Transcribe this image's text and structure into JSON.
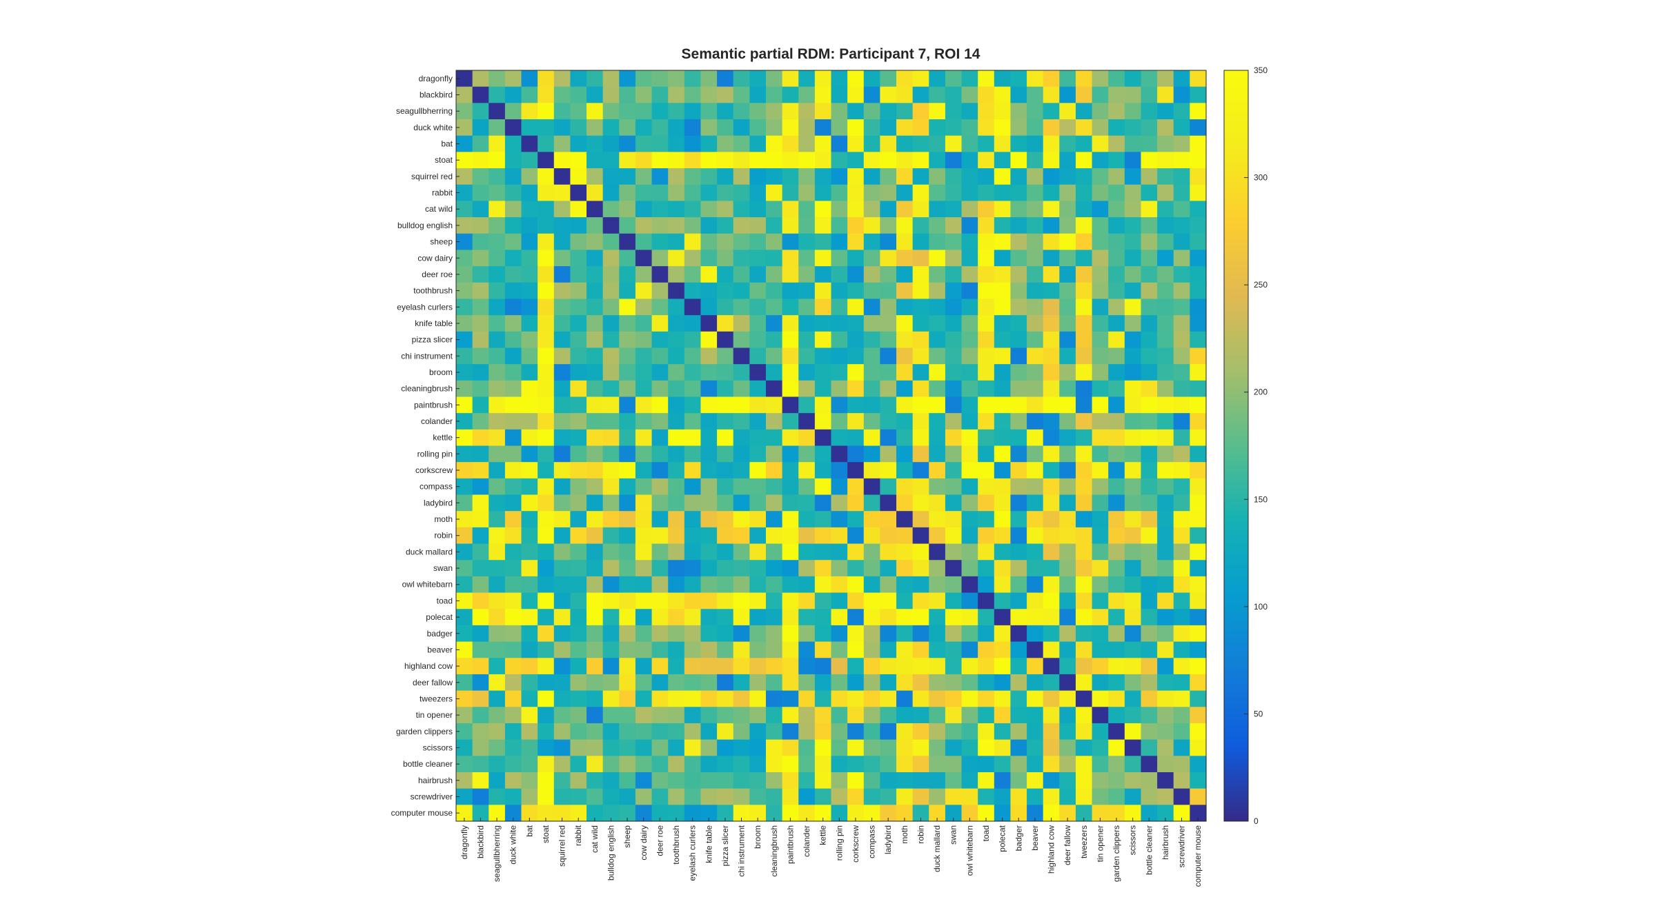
{
  "chart_data": {
    "type": "heatmap",
    "title": "Semantic partial RDM: Participant 7, ROI 14",
    "colormap": "parula",
    "clim": [
      0,
      350
    ],
    "colorbar_ticks": [
      "0",
      "50",
      "100",
      "150",
      "200",
      "250",
      "300",
      "350"
    ],
    "labels": [
      "dragonfly",
      "blackbird",
      "seagullbherring",
      "duck white",
      "bat",
      "stoat",
      "squirrel red",
      "rabbit",
      "cat wild",
      "bulldog english",
      "sheep",
      "cow dairy",
      "deer roe",
      "toothbrush",
      "eyelash curlers",
      "knife table",
      "pizza slicer",
      "chi instrument",
      "broom",
      "cleaningbrush",
      "paintbrush",
      "colander",
      "kettle",
      "rolling pin",
      "corkscrew",
      "compass",
      "ladybird",
      "moth",
      "robin",
      "duck mallard",
      "swan",
      "owl whitebarn",
      "toad",
      "polecat",
      "badger",
      "beaver",
      "highland cow",
      "deer fallow",
      "tweezers",
      "tin opener",
      "garden clippers",
      "scissors",
      "bottle cleaner",
      "hairbrush",
      "screwdriver",
      "computer mouse"
    ],
    "diagonal_value": 5,
    "high_value_rows": {
      "stoat": 330,
      "paintbrush": 335,
      "kettle": 320,
      "corkscrew": 320,
      "moth": 300,
      "robin": 295,
      "toad": 315,
      "polecat": 325,
      "highland cow": 290,
      "tweezers": 300,
      "computer mouse": 310
    },
    "typical_value_range": [
      110,
      230
    ]
  }
}
